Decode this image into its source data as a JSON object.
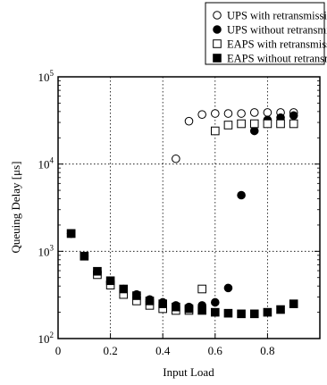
{
  "chart_data": {
    "type": "scatter",
    "xlabel": "Input Load",
    "ylabel": "Queuing Delay [μs]",
    "xlim": [
      0,
      1.0
    ],
    "ylim": [
      100,
      100000
    ],
    "yscale": "log",
    "grid": true,
    "legend_position": "top-right",
    "x_ticks": [
      {
        "value": 0,
        "label": "0"
      },
      {
        "value": 0.2,
        "label": "0.2"
      },
      {
        "value": 0.4,
        "label": "0.4"
      },
      {
        "value": 0.6,
        "label": "0.6"
      },
      {
        "value": 0.8,
        "label": "0.8"
      }
    ],
    "y_ticks": [
      {
        "value": 100,
        "base": "10",
        "exp": "2"
      },
      {
        "value": 1000,
        "base": "10",
        "exp": "3"
      },
      {
        "value": 10000,
        "base": "10",
        "exp": "4"
      },
      {
        "value": 100000,
        "base": "10",
        "exp": "5"
      }
    ],
    "series": [
      {
        "name": "UPS with retransmission",
        "marker": "open-circle",
        "x": [
          0.05,
          0.1,
          0.15,
          0.2,
          0.25,
          0.3,
          0.35,
          0.4,
          0.45,
          0.5,
          0.55,
          0.6,
          0.65,
          0.7,
          0.75,
          0.8,
          0.85,
          0.9
        ],
        "y": [
          1600,
          880,
          570,
          440,
          350,
          300,
          270,
          250,
          11500,
          31000,
          37000,
          38000,
          38000,
          38000,
          39000,
          39000,
          39000,
          39000
        ]
      },
      {
        "name": "UPS without retransmission",
        "marker": "filled-circle",
        "x": [
          0.05,
          0.1,
          0.15,
          0.2,
          0.25,
          0.3,
          0.35,
          0.4,
          0.45,
          0.5,
          0.55,
          0.6,
          0.65,
          0.7,
          0.75,
          0.8,
          0.85,
          0.9
        ],
        "y": [
          1600,
          880,
          570,
          450,
          370,
          320,
          280,
          260,
          240,
          230,
          240,
          260,
          380,
          4400,
          24000,
          32000,
          34000,
          36000
        ]
      },
      {
        "name": "EAPS with retransmission",
        "marker": "open-square",
        "x": [
          0.05,
          0.1,
          0.15,
          0.2,
          0.25,
          0.3,
          0.35,
          0.4,
          0.45,
          0.5,
          0.55,
          0.6,
          0.65,
          0.7,
          0.75,
          0.8,
          0.85,
          0.9
        ],
        "y": [
          1600,
          880,
          540,
          410,
          320,
          270,
          240,
          220,
          210,
          210,
          370,
          24000,
          28000,
          29000,
          29000,
          29000,
          29000,
          29000
        ]
      },
      {
        "name": "EAPS without retransmission",
        "marker": "filled-square",
        "x": [
          0.05,
          0.1,
          0.15,
          0.2,
          0.25,
          0.3,
          0.35,
          0.4,
          0.45,
          0.5,
          0.55,
          0.6,
          0.65,
          0.7,
          0.75,
          0.8,
          0.85,
          0.9
        ],
        "y": [
          1600,
          880,
          590,
          460,
          370,
          310,
          270,
          250,
          230,
          220,
          210,
          200,
          195,
          192,
          192,
          200,
          215,
          250
        ]
      }
    ]
  }
}
